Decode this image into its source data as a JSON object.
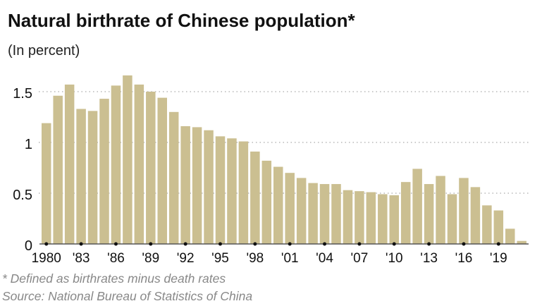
{
  "title": "Natural birthrate of Chinese population*",
  "subtitle": "(In percent)",
  "footnote": "* Defined as birthrates minus death rates",
  "source": "Source: National Bureau of Statistics of China",
  "colors": {
    "bar": "#cbbf91",
    "grid": "#aaaaaa",
    "axis": "#555555"
  },
  "chart_data": {
    "type": "bar",
    "title": "Natural birthrate of Chinese population*",
    "ylabel": "(In percent)",
    "ylim": [
      0,
      1.7
    ],
    "yticks": [
      0,
      0.5,
      1,
      1.5
    ],
    "ytick_labels": [
      "0",
      "0.5",
      "1",
      "1.5"
    ],
    "grid": "dotted horizontal",
    "categories": [
      1980,
      1981,
      1982,
      1983,
      1984,
      1985,
      1986,
      1987,
      1988,
      1989,
      1990,
      1991,
      1992,
      1993,
      1994,
      1995,
      1996,
      1997,
      1998,
      1999,
      2000,
      2001,
      2002,
      2003,
      2004,
      2005,
      2006,
      2007,
      2008,
      2009,
      2010,
      2011,
      2012,
      2013,
      2014,
      2015,
      2016,
      2017,
      2018,
      2019,
      2020,
      2021
    ],
    "values": [
      1.19,
      1.46,
      1.57,
      1.33,
      1.31,
      1.43,
      1.56,
      1.66,
      1.57,
      1.5,
      1.44,
      1.3,
      1.16,
      1.15,
      1.12,
      1.06,
      1.04,
      1.01,
      0.91,
      0.82,
      0.76,
      0.7,
      0.65,
      0.6,
      0.59,
      0.59,
      0.53,
      0.52,
      0.51,
      0.49,
      0.48,
      0.61,
      0.74,
      0.59,
      0.67,
      0.49,
      0.65,
      0.56,
      0.38,
      0.33,
      0.15,
      0.03
    ],
    "xtick_labels": [
      {
        "year": 1980,
        "label": "1980"
      },
      {
        "year": 1983,
        "label": "'83"
      },
      {
        "year": 1986,
        "label": "'86"
      },
      {
        "year": 1989,
        "label": "'89"
      },
      {
        "year": 1992,
        "label": "'92"
      },
      {
        "year": 1995,
        "label": "'95"
      },
      {
        "year": 1998,
        "label": "'98"
      },
      {
        "year": 2001,
        "label": "'01"
      },
      {
        "year": 2004,
        "label": "'04"
      },
      {
        "year": 2007,
        "label": "'07"
      },
      {
        "year": 2010,
        "label": "'10"
      },
      {
        "year": 2013,
        "label": "'13"
      },
      {
        "year": 2016,
        "label": "'16"
      },
      {
        "year": 2019,
        "label": "'19"
      }
    ]
  }
}
